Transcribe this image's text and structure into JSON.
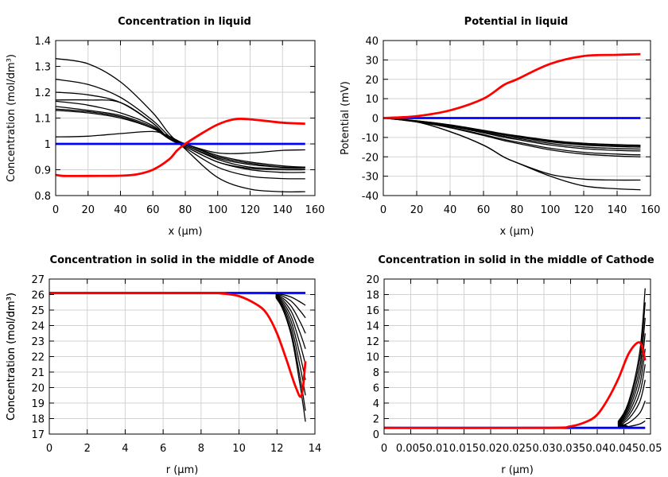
{
  "chart_data": [
    {
      "type": "line",
      "title": "Concentration in liquid",
      "xlabel": "x (µm)",
      "ylabel": "Concentration (mol/dm³)",
      "xlim": [
        0,
        160
      ],
      "ylim": [
        0.8,
        1.4
      ],
      "xticks": [
        0,
        20,
        40,
        60,
        80,
        100,
        120,
        140,
        160
      ],
      "xtick_labels": [
        "0",
        "20",
        "40",
        "60",
        "80",
        "100",
        "120",
        "140",
        "160"
      ],
      "yticks": [
        0.8,
        0.9,
        1,
        1.1,
        1.2,
        1.3,
        1.4
      ],
      "ytick_labels": [
        "0.8",
        "0.9",
        "1",
        "1.1",
        "1.2",
        "1.3",
        "1.4"
      ],
      "grid": true,
      "x": [
        0,
        20,
        40,
        60,
        70,
        80,
        100,
        120,
        140,
        154
      ],
      "series": [
        {
          "color": "#000000",
          "values": [
            1.33,
            1.31,
            1.24,
            1.12,
            1.04,
            0.98,
            0.87,
            0.825,
            0.815,
            0.815
          ]
        },
        {
          "color": "#000000",
          "values": [
            1.25,
            1.23,
            1.18,
            1.09,
            1.03,
            0.985,
            0.91,
            0.875,
            0.866,
            0.865
          ]
        },
        {
          "color": "#000000",
          "values": [
            1.2,
            1.19,
            1.16,
            1.08,
            1.02,
            0.99,
            0.93,
            0.9,
            0.89,
            0.89
          ]
        },
        {
          "color": "#000000",
          "values": [
            1.17,
            1.17,
            1.16,
            1.08,
            1.02,
            0.99,
            0.93,
            0.905,
            0.9,
            0.9
          ]
        },
        {
          "color": "#000000",
          "values": [
            1.165,
            1.15,
            1.12,
            1.07,
            1.02,
            0.995,
            0.94,
            0.91,
            0.905,
            0.905
          ]
        },
        {
          "color": "#000000",
          "values": [
            1.145,
            1.13,
            1.11,
            1.065,
            1.02,
            0.995,
            0.945,
            0.92,
            0.91,
            0.91
          ]
        },
        {
          "color": "#000000",
          "values": [
            1.135,
            1.125,
            1.105,
            1.06,
            1.02,
            1.0,
            0.95,
            0.925,
            0.91,
            0.91
          ]
        },
        {
          "color": "#000000",
          "values": [
            1.13,
            1.12,
            1.1,
            1.06,
            1.025,
            1.0,
            0.955,
            0.93,
            0.915,
            0.91
          ]
        },
        {
          "color": "#000000",
          "values": [
            1.027,
            1.03,
            1.04,
            1.048,
            1.03,
            1.0,
            0.965,
            0.965,
            0.975,
            0.977
          ]
        },
        {
          "color": "#0000ff",
          "values": [
            1,
            1,
            1,
            1,
            1,
            1,
            1,
            1,
            1,
            1
          ]
        },
        {
          "color": "#ff0000",
          "x": [
            0,
            5,
            20,
            40,
            50,
            60,
            70,
            75,
            80,
            90,
            100,
            110,
            120,
            140,
            154
          ],
          "values": [
            0.88,
            0.876,
            0.876,
            0.877,
            0.882,
            0.9,
            0.94,
            0.975,
            1.0,
            1.04,
            1.075,
            1.095,
            1.095,
            1.082,
            1.078
          ]
        }
      ]
    },
    {
      "type": "line",
      "title": "Potential in liquid",
      "xlabel": "x (µm)",
      "ylabel": "Potential (mV)",
      "xlim": [
        0,
        160
      ],
      "ylim": [
        -40,
        40
      ],
      "xticks": [
        0,
        20,
        40,
        60,
        80,
        100,
        120,
        140,
        160
      ],
      "xtick_labels": [
        "0",
        "20",
        "40",
        "60",
        "80",
        "100",
        "120",
        "140",
        "160"
      ],
      "yticks": [
        -40,
        -30,
        -20,
        -10,
        0,
        10,
        20,
        30,
        40
      ],
      "ytick_labels": [
        "-40",
        "-30",
        "-20",
        "-10",
        "0",
        "10",
        "20",
        "30",
        "40"
      ],
      "grid": true,
      "x": [
        0,
        20,
        40,
        60,
        72,
        80,
        100,
        120,
        140,
        154
      ],
      "series": [
        {
          "color": "#000000",
          "values": [
            0,
            -2,
            -7,
            -14,
            -20,
            -23,
            -30,
            -35,
            -36.5,
            -37
          ]
        },
        {
          "color": "#000000",
          "values": [
            0,
            -2,
            -7,
            -14,
            -20,
            -23,
            -29,
            -31.5,
            -32,
            -32
          ]
        },
        {
          "color": "#000000",
          "values": [
            0,
            -2,
            -5,
            -9,
            -11.6,
            -13,
            -16.4,
            -18.6,
            -19.6,
            -20
          ]
        },
        {
          "color": "#000000",
          "values": [
            0,
            -1.9,
            -4.75,
            -8.55,
            -11,
            -12.35,
            -15.6,
            -17.7,
            -18.6,
            -19
          ]
        },
        {
          "color": "#000000",
          "values": [
            0,
            -1.7,
            -4.25,
            -7.65,
            -9.9,
            -11.05,
            -13.9,
            -15.8,
            -16.7,
            -17
          ]
        },
        {
          "color": "#000000",
          "values": [
            0,
            -1.6,
            -4,
            -7.2,
            -9.3,
            -10.4,
            -13.1,
            -14.9,
            -15.7,
            -16
          ]
        },
        {
          "color": "#000000",
          "values": [
            0,
            -1.5,
            -3.75,
            -6.75,
            -8.7,
            -9.75,
            -12.3,
            -13.95,
            -14.7,
            -15
          ]
        },
        {
          "color": "#000000",
          "values": [
            0,
            -1.45,
            -3.6,
            -6.5,
            -8.4,
            -9.4,
            -11.9,
            -13.5,
            -14.2,
            -14.5
          ]
        },
        {
          "color": "#000000",
          "values": [
            0,
            -1.4,
            -3.5,
            -6.3,
            -8.1,
            -9.1,
            -11.5,
            -13,
            -13.7,
            -14
          ]
        },
        {
          "color": "#0000ff",
          "values": [
            0,
            0,
            0,
            0,
            0,
            0,
            0,
            0,
            0,
            0
          ]
        },
        {
          "color": "#ff0000",
          "values": [
            0,
            1,
            4,
            10,
            17,
            20,
            28,
            32,
            32.6,
            33
          ]
        }
      ]
    },
    {
      "type": "line",
      "title": "Concentration in solid in the middle of Anode",
      "xlabel": "r (µm)",
      "ylabel": "Concentration (mol/dm³)",
      "xlim": [
        0,
        14
      ],
      "ylim": [
        17,
        27
      ],
      "xticks": [
        0,
        2,
        4,
        6,
        8,
        10,
        12,
        14
      ],
      "xtick_labels": [
        "0",
        "2",
        "4",
        "6",
        "8",
        "10",
        "12",
        "14"
      ],
      "yticks": [
        17,
        18,
        19,
        20,
        21,
        22,
        23,
        24,
        25,
        26,
        27
      ],
      "ytick_labels": [
        "17",
        "18",
        "19",
        "20",
        "21",
        "22",
        "23",
        "24",
        "25",
        "26",
        "27"
      ],
      "grid": true,
      "x": [
        0,
        11,
        12,
        12.7,
        13.2,
        13.5
      ],
      "series": [
        {
          "color": "#000000",
          "values": [
            26.1,
            26.1,
            26.06,
            25.86,
            25.54,
            25.3
          ]
        },
        {
          "color": "#000000",
          "values": [
            26.1,
            26.1,
            26.02,
            25.62,
            24.98,
            24.5
          ]
        },
        {
          "color": "#000000",
          "values": [
            26.1,
            26.1,
            25.97,
            25.32,
            24.28,
            23.5
          ]
        },
        {
          "color": "#000000",
          "values": [
            26.1,
            26.1,
            25.92,
            25.02,
            23.58,
            22.5
          ]
        },
        {
          "color": "#000000",
          "values": [
            26.1,
            26.1,
            25.87,
            24.72,
            22.88,
            21.5
          ]
        },
        {
          "color": "#000000",
          "values": [
            26.1,
            26.1,
            25.82,
            24.42,
            22.18,
            20.5
          ]
        },
        {
          "color": "#000000",
          "values": [
            26.1,
            26.1,
            25.77,
            24.12,
            21.48,
            19.5
          ]
        },
        {
          "color": "#000000",
          "values": [
            26.1,
            26.1,
            25.72,
            23.82,
            20.78,
            18.5
          ]
        },
        {
          "color": "#000000",
          "values": [
            26.1,
            26.1,
            25.69,
            23.61,
            20.29,
            17.8
          ]
        },
        {
          "color": "#0000ff",
          "values": [
            26.1,
            26.1,
            26.1,
            26.1,
            26.1,
            26.1
          ]
        },
        {
          "color": "#ff0000",
          "x": [
            0,
            8.5,
            9,
            10,
            11,
            11.5,
            12,
            12.5,
            13,
            13.3,
            13.5
          ],
          "values": [
            26.1,
            26.1,
            26.08,
            25.9,
            25.3,
            24.7,
            23.5,
            21.8,
            20,
            19.5,
            21.7
          ]
        }
      ]
    },
    {
      "type": "line",
      "title": "Concentration in solid in the middle of Cathode",
      "xlabel": "r (µm)",
      "ylabel": "Concentration (mol/dm³)",
      "xlim": [
        0,
        0.05
      ],
      "ylim": [
        0,
        20
      ],
      "xticks": [
        0,
        0.005,
        0.01,
        0.015,
        0.02,
        0.025,
        0.03,
        0.035,
        0.04,
        0.045,
        0.05
      ],
      "xtick_labels": [
        "0",
        "0.005",
        "0.01",
        "0.015",
        "0.02",
        "0.025",
        "0.03",
        "0.035",
        "0.04",
        "0.045",
        "0.05"
      ],
      "yticks": [
        0,
        2,
        4,
        6,
        8,
        10,
        12,
        14,
        16,
        18,
        20
      ],
      "ytick_labels": [
        "0",
        "2",
        "4",
        "6",
        "8",
        "10",
        "12",
        "14",
        "16",
        "18",
        "20"
      ],
      "grid": true,
      "x": [
        0,
        0.042,
        0.044,
        0.046,
        0.048,
        0.049
      ],
      "series": [
        {
          "color": "#000000",
          "values": [
            0.8,
            0.8,
            1.7,
            4.4,
            10.7,
            18.8
          ]
        },
        {
          "color": "#000000",
          "values": [
            0.8,
            0.8,
            1.61,
            4.04,
            9.71,
            17
          ]
        },
        {
          "color": "#000000",
          "values": [
            0.8,
            0.8,
            1.51,
            3.64,
            8.61,
            15
          ]
        },
        {
          "color": "#000000",
          "values": [
            0.8,
            0.8,
            1.41,
            3.24,
            7.51,
            13
          ]
        },
        {
          "color": "#000000",
          "values": [
            0.8,
            0.8,
            1.31,
            2.84,
            6.41,
            11
          ]
        },
        {
          "color": "#000000",
          "values": [
            0.8,
            0.8,
            1.21,
            2.44,
            5.31,
            9
          ]
        },
        {
          "color": "#000000",
          "values": [
            0.8,
            0.8,
            1.11,
            2.04,
            4.21,
            7
          ]
        },
        {
          "color": "#000000",
          "values": [
            0.8,
            0.8,
            0.98,
            1.5,
            2.73,
            4.3
          ]
        },
        {
          "color": "#000000",
          "values": [
            0.8,
            0.8,
            0.85,
            0.98,
            1.3,
            1.7
          ]
        },
        {
          "color": "#0000ff",
          "values": [
            0.8,
            0.8,
            0.8,
            0.8,
            0.8,
            0.8
          ]
        },
        {
          "color": "#ff0000",
          "x": [
            0,
            0.03,
            0.035,
            0.038,
            0.04,
            0.042,
            0.044,
            0.046,
            0.048,
            0.049
          ],
          "values": [
            0.8,
            0.8,
            1.0,
            1.6,
            2.5,
            4.5,
            7.2,
            10.5,
            11.8,
            9.5
          ]
        }
      ]
    }
  ]
}
